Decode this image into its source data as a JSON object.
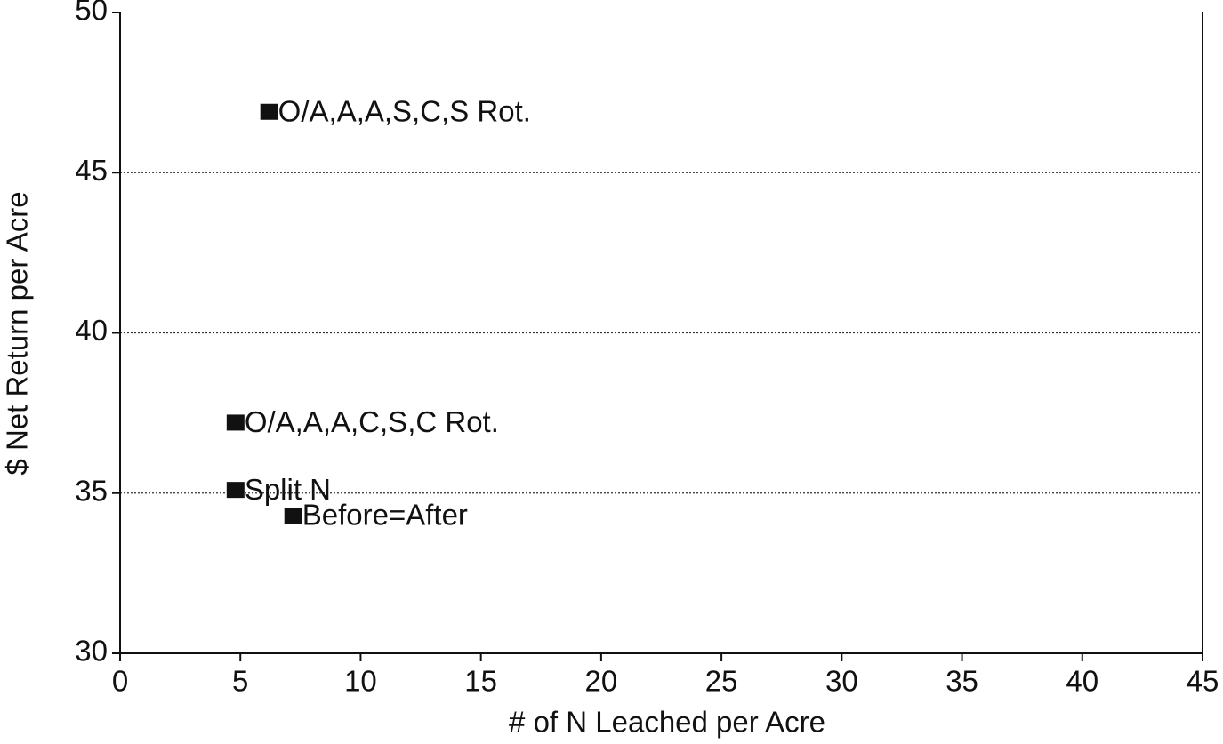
{
  "chart_data": {
    "type": "scatter",
    "xlabel": "# of N Leached per Acre",
    "ylabel": "$ Net Return per Acre",
    "x": [
      6.2,
      4.8,
      4.8,
      7.2
    ],
    "values": [
      46.9,
      37.2,
      35.1,
      34.3
    ],
    "labels": [
      "O/A,A,A,S,C,S Rot.",
      "O/A,A,A,C,S,C Rot.",
      "Split N",
      "Before=After"
    ],
    "color": "#111111",
    "xlim": [
      0,
      45
    ],
    "xticks": [
      0,
      5,
      10,
      15,
      20,
      25,
      30,
      35,
      40,
      45
    ],
    "ylim": [
      30,
      50
    ],
    "yticks": [
      30,
      35,
      40,
      45,
      50
    ],
    "grid": true
  }
}
